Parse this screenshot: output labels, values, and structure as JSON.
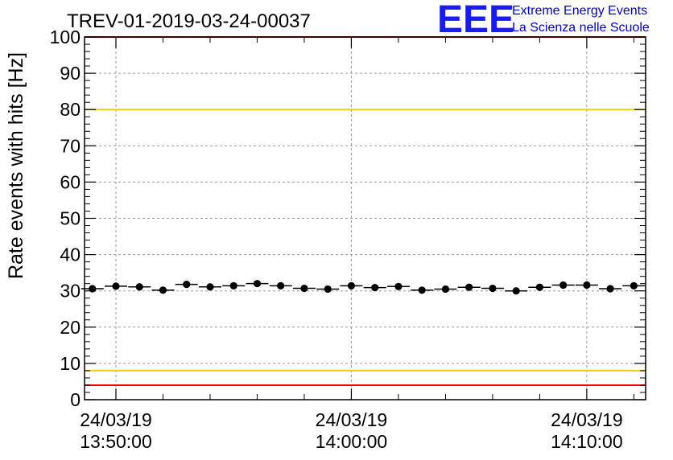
{
  "brand": {
    "logo": "EEE",
    "line1": "Extreme Energy Events",
    "line2": "La Scienza nelle Scuole"
  },
  "chart_data": {
    "type": "scatter",
    "title": "TREV-01-2019-03-24-00037",
    "ylabel": "Rate events with hits [Hz]",
    "xlabel": "",
    "ylim": [
      0,
      100
    ],
    "yticks": [
      0,
      10,
      20,
      30,
      40,
      50,
      60,
      70,
      80,
      90,
      100
    ],
    "xlim": [
      "24/03/19 13:48:40",
      "24/03/19 14:12:30"
    ],
    "xticks": [
      {
        "date": "24/03/19",
        "time": "13:50:00"
      },
      {
        "date": "24/03/19",
        "time": "14:00:00"
      },
      {
        "date": "24/03/19",
        "time": "14:10:00"
      }
    ],
    "grid": true,
    "reference_lines": [
      {
        "y": 100,
        "color": "#ff0000"
      },
      {
        "y": 80,
        "color": "#f0d000"
      },
      {
        "y": 8,
        "color": "#f0d000"
      },
      {
        "y": 4,
        "color": "#ff0000"
      }
    ],
    "series": [
      {
        "color": "#000000",
        "x": [
          "13:49:00",
          "13:50:00",
          "13:51:00",
          "13:52:00",
          "13:53:00",
          "13:54:00",
          "13:55:00",
          "13:56:00",
          "13:57:00",
          "13:58:00",
          "13:59:00",
          "14:00:00",
          "14:01:00",
          "14:02:00",
          "14:03:00",
          "14:04:00",
          "14:05:00",
          "14:06:00",
          "14:07:00",
          "14:08:00",
          "14:09:00",
          "14:10:00",
          "14:11:00",
          "14:12:00"
        ],
        "y": [
          30.6,
          31.3,
          31.1,
          30.2,
          31.8,
          31.1,
          31.4,
          32.0,
          31.4,
          30.7,
          30.5,
          31.4,
          30.9,
          31.2,
          30.2,
          30.5,
          31.0,
          30.7,
          30.0,
          31.0,
          31.6,
          31.6,
          30.6,
          31.4
        ],
        "y_error": 0.2
      }
    ]
  }
}
